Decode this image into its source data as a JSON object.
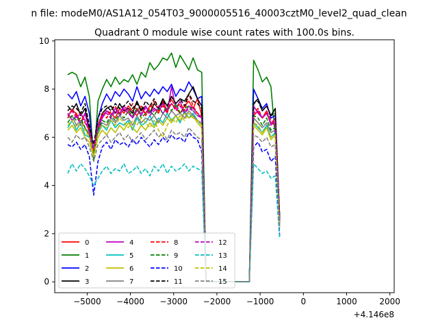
{
  "figure": {
    "suptitle": "n file: modeM0/AS1A12_054T03_9000005516_40003cztM0_level2_quad_clean",
    "title": "Quadrant 0 module wise count rates with 100.0s bins.",
    "offset_label": "+4.146e8"
  },
  "chart_data": {
    "type": "line",
    "title": "Quadrant 0 module wise count rates with 100.0s bins.",
    "xlabel": "",
    "ylabel": "",
    "x_offset": 414600000,
    "xlim": [
      -5750,
      2100
    ],
    "ylim": [
      -0.45,
      10.05
    ],
    "xticks": [
      -5000,
      -4000,
      -3000,
      -2000,
      -1000,
      0,
      1000,
      2000
    ],
    "xtick_labels": [
      "−5000",
      "−4000",
      "−3000",
      "−2000",
      "−1000",
      "0",
      "1000",
      "2000"
    ],
    "yticks": [
      0,
      2,
      4,
      6,
      8,
      10
    ],
    "ytick_labels": [
      "0",
      "2",
      "4",
      "6",
      "8",
      "10"
    ],
    "grid": false,
    "legend": {
      "position": "lower-left",
      "columns": 4
    },
    "x_start": -5450,
    "x_step": 100,
    "series": [
      {
        "name": "0",
        "color": "#ff0000",
        "dash": "solid",
        "values": [
          6.9,
          7.1,
          7.0,
          6.6,
          7.0,
          6.4,
          5.5,
          6.3,
          6.9,
          7.1,
          7.0,
          6.8,
          7.2,
          7.0,
          7.3,
          7.1,
          6.9,
          7.2,
          7.0,
          7.3,
          7.2,
          7.0,
          7.5,
          7.1,
          7.4,
          7.2,
          7.0,
          7.3,
          7.5,
          7.2,
          7.6,
          6.9,
          0.0,
          0.0,
          0.0,
          0.0,
          0.0,
          0.0,
          0.0,
          0.0,
          0.0,
          0.0,
          0.0,
          6.9,
          7.1,
          6.8,
          7.0,
          6.6,
          6.5,
          2.6
        ]
      },
      {
        "name": "1",
        "color": "#008000",
        "dash": "solid",
        "values": [
          8.6,
          8.7,
          8.6,
          8.1,
          8.5,
          7.7,
          5.0,
          7.5,
          8.0,
          8.4,
          8.1,
          8.5,
          8.2,
          8.4,
          8.3,
          8.6,
          8.2,
          8.7,
          8.5,
          9.1,
          8.8,
          9.0,
          9.3,
          9.2,
          9.5,
          8.9,
          9.4,
          9.1,
          8.8,
          9.3,
          8.8,
          8.7,
          0.0,
          0.0,
          0.0,
          0.0,
          0.0,
          0.0,
          0.0,
          0.0,
          0.0,
          0.0,
          0.0,
          9.2,
          8.8,
          8.3,
          8.5,
          8.1,
          6.0,
          2.8
        ]
      },
      {
        "name": "2",
        "color": "#0000ff",
        "dash": "solid",
        "values": [
          7.8,
          7.6,
          7.9,
          7.3,
          7.7,
          7.0,
          5.2,
          6.8,
          7.4,
          7.8,
          7.5,
          7.9,
          7.7,
          8.0,
          7.8,
          7.5,
          8.1,
          7.6,
          7.9,
          7.7,
          8.0,
          7.8,
          8.1,
          7.9,
          8.2,
          7.7,
          8.0,
          7.9,
          8.3,
          8.0,
          7.6,
          7.7,
          0.0,
          0.0,
          0.0,
          0.0,
          0.0,
          0.0,
          0.0,
          0.0,
          0.0,
          0.0,
          0.0,
          8.0,
          7.6,
          7.2,
          7.4,
          6.8,
          6.9,
          2.7
        ]
      },
      {
        "name": "3",
        "color": "#000000",
        "dash": "solid",
        "values": [
          7.3,
          7.1,
          7.4,
          6.9,
          7.2,
          6.3,
          5.4,
          6.5,
          7.0,
          7.2,
          7.3,
          7.0,
          7.4,
          7.1,
          7.2,
          7.0,
          7.5,
          7.1,
          7.3,
          7.0,
          7.4,
          7.2,
          7.6,
          7.3,
          7.7,
          7.4,
          7.6,
          7.5,
          7.8,
          8.1,
          7.6,
          7.3,
          0.0,
          0.0,
          0.0,
          0.0,
          0.0,
          0.0,
          0.0,
          0.0,
          0.0,
          0.0,
          0.0,
          7.4,
          7.6,
          7.1,
          7.3,
          6.9,
          7.2,
          2.6
        ]
      },
      {
        "name": "4",
        "color": "#bf00bf",
        "dash": "solid",
        "values": [
          7.0,
          6.7,
          6.9,
          6.5,
          7.0,
          6.2,
          5.6,
          6.4,
          6.8,
          7.1,
          6.9,
          7.2,
          7.0,
          7.3,
          7.1,
          6.8,
          7.2,
          6.9,
          7.3,
          7.0,
          7.2,
          7.1,
          7.4,
          7.0,
          8.1,
          7.2,
          7.5,
          7.0,
          7.3,
          7.2,
          7.0,
          6.8,
          0.0,
          0.0,
          0.0,
          0.0,
          0.0,
          0.0,
          0.0,
          0.0,
          0.0,
          0.0,
          0.0,
          7.3,
          7.0,
          6.8,
          7.1,
          6.5,
          6.8,
          2.5
        ]
      },
      {
        "name": "5",
        "color": "#00bfbf",
        "dash": "solid",
        "values": [
          6.4,
          6.7,
          6.3,
          6.6,
          6.1,
          6.0,
          5.6,
          6.2,
          6.5,
          6.3,
          6.7,
          6.4,
          6.6,
          6.5,
          6.7,
          6.3,
          6.8,
          6.5,
          6.6,
          6.9,
          6.5,
          6.8,
          6.6,
          7.0,
          6.7,
          6.9,
          6.6,
          7.1,
          6.8,
          7.0,
          6.7,
          6.5,
          0.0,
          0.0,
          0.0,
          0.0,
          0.0,
          0.0,
          0.0,
          0.0,
          0.0,
          0.0,
          0.0,
          6.6,
          6.4,
          6.2,
          6.5,
          6.0,
          6.2,
          2.3
        ]
      },
      {
        "name": "6",
        "color": "#bfbf00",
        "dash": "solid",
        "values": [
          6.3,
          6.5,
          6.2,
          6.4,
          6.0,
          5.8,
          5.2,
          6.0,
          6.3,
          6.1,
          6.4,
          6.2,
          6.5,
          6.3,
          6.6,
          6.4,
          6.2,
          6.5,
          6.3,
          6.6,
          6.4,
          6.7,
          6.5,
          6.8,
          6.6,
          6.9,
          6.7,
          7.0,
          6.8,
          6.9,
          6.6,
          6.4,
          0.0,
          0.0,
          0.0,
          0.0,
          0.0,
          0.0,
          0.0,
          0.0,
          0.0,
          0.0,
          0.0,
          6.5,
          6.3,
          6.1,
          6.4,
          5.9,
          6.1,
          2.3
        ]
      },
      {
        "name": "7",
        "color": "#808080",
        "dash": "solid",
        "values": [
          6.8,
          6.9,
          6.5,
          6.7,
          6.4,
          6.1,
          5.5,
          6.3,
          6.6,
          6.5,
          6.8,
          6.6,
          6.9,
          6.7,
          6.8,
          6.5,
          6.9,
          6.6,
          6.8,
          6.7,
          6.9,
          6.6,
          7.0,
          6.8,
          7.1,
          6.9,
          7.0,
          6.8,
          7.1,
          6.9,
          6.7,
          6.6,
          0.0,
          0.0,
          0.0,
          0.0,
          0.0,
          0.0,
          0.0,
          0.0,
          0.0,
          0.0,
          0.0,
          6.8,
          6.6,
          6.4,
          6.6,
          6.2,
          6.3,
          2.4
        ]
      },
      {
        "name": "8",
        "color": "#ff0000",
        "dash": "dashed",
        "values": [
          6.8,
          7.2,
          6.9,
          7.0,
          6.6,
          6.3,
          5.4,
          6.5,
          7.0,
          6.8,
          7.1,
          7.3,
          6.9,
          7.2,
          7.0,
          7.4,
          7.1,
          7.3,
          6.9,
          7.2,
          7.5,
          7.1,
          7.3,
          7.0,
          7.6,
          7.2,
          7.4,
          7.1,
          7.8,
          7.3,
          7.0,
          6.9,
          0.0,
          0.0,
          0.0,
          0.0,
          0.0,
          0.0,
          0.0,
          0.0,
          0.0,
          0.0,
          0.0,
          7.0,
          7.2,
          6.8,
          7.1,
          6.7,
          6.6,
          2.5
        ]
      },
      {
        "name": "9",
        "color": "#008000",
        "dash": "dashed",
        "values": [
          6.6,
          6.9,
          6.7,
          6.8,
          6.4,
          6.1,
          5.3,
          6.3,
          6.7,
          6.6,
          6.9,
          6.7,
          7.0,
          6.8,
          7.1,
          6.9,
          7.2,
          6.8,
          7.0,
          7.1,
          6.9,
          7.2,
          7.0,
          7.3,
          7.1,
          7.4,
          7.0,
          7.2,
          7.3,
          7.1,
          6.9,
          6.8,
          0.0,
          0.0,
          0.0,
          0.0,
          0.0,
          0.0,
          0.0,
          0.0,
          0.0,
          0.0,
          0.0,
          6.9,
          6.8,
          6.5,
          6.8,
          6.3,
          6.4,
          2.4
        ]
      },
      {
        "name": "10",
        "color": "#0000ff",
        "dash": "dashed",
        "values": [
          5.7,
          5.6,
          5.8,
          5.5,
          5.7,
          5.2,
          3.6,
          5.0,
          5.6,
          5.8,
          5.5,
          5.9,
          5.7,
          5.8,
          5.6,
          5.9,
          5.7,
          6.0,
          5.8,
          5.6,
          5.9,
          5.7,
          6.0,
          5.8,
          6.1,
          5.9,
          6.0,
          5.8,
          6.2,
          6.0,
          5.9,
          5.4,
          0.0,
          0.0,
          0.0,
          0.0,
          0.0,
          0.0,
          0.0,
          0.0,
          0.0,
          0.0,
          0.0,
          5.6,
          5.8,
          5.4,
          5.5,
          5.0,
          5.2,
          1.9
        ]
      },
      {
        "name": "11",
        "color": "#000000",
        "dash": "dashed",
        "values": [
          7.1,
          7.3,
          7.2,
          7.0,
          7.4,
          6.5,
          5.7,
          6.8,
          7.2,
          7.3,
          7.1,
          7.4,
          7.2,
          7.3,
          7.5,
          7.2,
          7.4,
          7.1,
          7.5,
          7.3,
          7.6,
          7.2,
          7.5,
          7.3,
          7.7,
          7.4,
          7.6,
          7.3,
          7.8,
          7.5,
          7.4,
          7.2,
          0.0,
          0.0,
          0.0,
          0.0,
          0.0,
          0.0,
          0.0,
          0.0,
          0.0,
          0.0,
          0.0,
          7.4,
          7.5,
          7.1,
          7.3,
          6.9,
          7.0,
          2.7
        ]
      },
      {
        "name": "12",
        "color": "#bf00bf",
        "dash": "dashed",
        "values": [
          6.9,
          7.1,
          6.8,
          7.0,
          6.7,
          6.2,
          5.5,
          6.5,
          6.9,
          7.0,
          6.8,
          7.1,
          6.9,
          7.2,
          7.0,
          6.8,
          7.1,
          7.0,
          7.2,
          6.9,
          7.1,
          7.3,
          7.0,
          7.2,
          7.4,
          7.1,
          7.3,
          7.0,
          7.2,
          7.1,
          6.9,
          6.8,
          0.0,
          0.0,
          0.0,
          0.0,
          0.0,
          0.0,
          0.0,
          0.0,
          0.0,
          0.0,
          0.0,
          7.0,
          7.1,
          6.8,
          7.0,
          6.6,
          6.6,
          2.5
        ]
      },
      {
        "name": "13",
        "color": "#00bfbf",
        "dash": "dashed",
        "values": [
          4.5,
          4.9,
          4.6,
          4.9,
          4.7,
          4.4,
          4.0,
          4.3,
          4.6,
          4.8,
          4.5,
          4.7,
          4.6,
          4.9,
          4.5,
          4.6,
          4.8,
          4.5,
          4.7,
          4.4,
          4.8,
          4.6,
          4.9,
          4.5,
          4.8,
          4.6,
          4.7,
          4.9,
          4.6,
          4.8,
          4.7,
          4.6,
          0.0,
          0.0,
          0.0,
          0.0,
          0.0,
          0.0,
          0.0,
          0.0,
          0.0,
          0.0,
          0.0,
          4.9,
          4.7,
          4.5,
          4.6,
          4.3,
          4.4,
          1.8
        ]
      },
      {
        "name": "14",
        "color": "#bfbf00",
        "dash": "dashed",
        "values": [
          6.5,
          6.7,
          6.4,
          6.6,
          6.3,
          6.0,
          5.3,
          6.1,
          6.5,
          6.4,
          6.7,
          6.5,
          6.8,
          6.6,
          6.4,
          6.7,
          6.5,
          6.8,
          6.6,
          6.4,
          6.7,
          6.3,
          6.0,
          6.5,
          6.8,
          6.6,
          6.9,
          6.7,
          7.0,
          6.8,
          6.7,
          6.5,
          0.0,
          0.0,
          0.0,
          0.0,
          0.0,
          0.0,
          0.0,
          0.0,
          0.0,
          0.0,
          0.0,
          6.6,
          6.5,
          6.2,
          6.4,
          6.0,
          6.1,
          2.3
        ]
      },
      {
        "name": "15",
        "color": "#808080",
        "dash": "dashed",
        "values": [
          6.0,
          5.8,
          6.1,
          5.9,
          6.0,
          5.6,
          5.0,
          5.7,
          5.9,
          6.1,
          5.8,
          6.0,
          6.2,
          5.9,
          6.1,
          5.8,
          6.0,
          6.2,
          5.9,
          6.1,
          6.3,
          6.0,
          6.2,
          5.9,
          6.3,
          6.1,
          6.2,
          6.0,
          6.4,
          6.2,
          6.0,
          5.9,
          0.0,
          0.0,
          0.0,
          0.0,
          0.0,
          0.0,
          0.0,
          0.0,
          0.0,
          0.0,
          0.0,
          6.1,
          6.0,
          5.8,
          6.0,
          5.6,
          5.7,
          2.2
        ]
      }
    ]
  }
}
